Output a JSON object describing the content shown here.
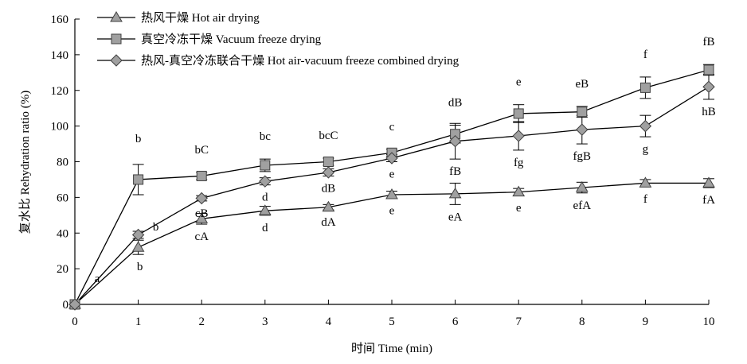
{
  "chart_data": {
    "type": "line",
    "title": "",
    "xlabel": "时间 Time (min)",
    "ylabel": "复水比 Rehydration ratio (%)",
    "xlim": [
      0,
      10
    ],
    "ylim": [
      0,
      160
    ],
    "x_ticks": [
      0,
      1,
      2,
      3,
      4,
      5,
      6,
      7,
      8,
      9,
      10
    ],
    "y_ticks": [
      0,
      20,
      40,
      60,
      80,
      100,
      120,
      140,
      160
    ],
    "grid": false,
    "legend_position": "top-left",
    "series": [
      {
        "name": "热风干燥 Hot air drying",
        "marker": "triangle",
        "color": "#a0a0a0",
        "x": [
          0,
          1,
          2,
          3,
          4,
          5,
          6,
          7,
          8,
          9,
          10
        ],
        "y": [
          0,
          32,
          48,
          52.5,
          54.5,
          61.5,
          62,
          63,
          65.5,
          68,
          68
        ],
        "err": [
          0,
          4,
          3,
          2.5,
          1.5,
          2,
          6,
          2,
          3,
          2,
          2.5
        ],
        "labels": [
          "",
          "b",
          "cA",
          "d",
          "dA",
          "e",
          "eA",
          "e",
          "efA",
          "f",
          "fA"
        ]
      },
      {
        "name": "真空冷冻干燥 Vacuum freeze drying",
        "marker": "square",
        "color": "#a0a0a0",
        "x": [
          0,
          1,
          2,
          3,
          4,
          5,
          6,
          7,
          8,
          9,
          10
        ],
        "y": [
          0,
          70,
          72,
          78,
          80,
          85,
          95.5,
          107,
          108,
          121.5,
          131.5
        ],
        "err": [
          0,
          8.5,
          2,
          3.5,
          2,
          2,
          5,
          5,
          3,
          6,
          3
        ],
        "labels": [
          "a",
          "b",
          "bC",
          "bc",
          "bcC",
          "c",
          "dB",
          "e",
          "eB",
          "f",
          "fB"
        ]
      },
      {
        "name": "热风-真空冷冻联合干燥 Hot air-vacuum freeze combined drying",
        "marker": "diamond",
        "color": "#a0a0a0",
        "x": [
          0,
          1,
          2,
          3,
          4,
          5,
          6,
          7,
          8,
          9,
          10
        ],
        "y": [
          0,
          39,
          59.5,
          69,
          74,
          82,
          91.5,
          94.5,
          98,
          100,
          122
        ],
        "err": [
          0,
          2,
          1.5,
          2,
          2,
          2,
          10,
          8,
          8,
          6,
          7
        ],
        "labels": [
          "",
          "b",
          "cB",
          "d",
          "dB",
          "e",
          "fB",
          "fg",
          "fgB",
          "g",
          "hB"
        ]
      }
    ]
  }
}
